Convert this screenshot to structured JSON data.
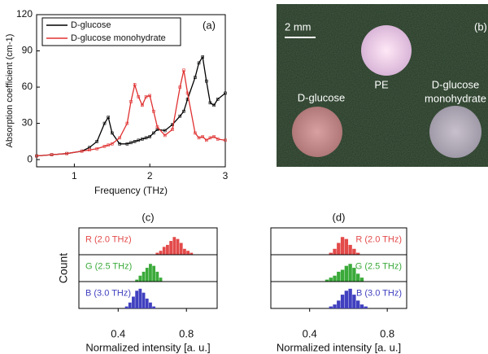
{
  "chart_data": [
    {
      "type": "line",
      "title": "(a)",
      "xlabel": "Frequency (THz)",
      "ylabel": "Absorption coefficient (cm-1)",
      "xlim": [
        0.5,
        3
      ],
      "xticks": [
        1,
        2,
        3
      ],
      "ylim": [
        -6,
        120
      ],
      "yticks": [
        0,
        30,
        60,
        90,
        120
      ],
      "x": [
        0.5,
        0.7,
        0.9,
        1.1,
        1.2,
        1.3,
        1.4,
        1.45,
        1.5,
        1.6,
        1.7,
        1.75,
        1.8,
        1.85,
        1.9,
        1.95,
        2.0,
        2.05,
        2.1,
        2.2,
        2.3,
        2.4,
        2.45,
        2.5,
        2.6,
        2.65,
        2.7,
        2.75,
        2.8,
        2.85,
        2.9,
        3.0
      ],
      "series": [
        {
          "name": "D-glucose",
          "color": "#000000",
          "values": [
            3,
            4,
            5,
            7,
            10,
            15,
            30,
            35,
            22,
            13,
            13,
            14,
            15,
            16,
            17,
            18,
            19,
            22,
            25,
            24,
            29,
            36,
            40,
            50,
            68,
            80,
            85,
            65,
            47,
            45,
            50,
            55
          ]
        },
        {
          "name": "D-glucose monohydrate",
          "color": "#e03030",
          "values": [
            3,
            4,
            5,
            7,
            8,
            9,
            11,
            12,
            13,
            18,
            30,
            48,
            62,
            52,
            45,
            52,
            53,
            40,
            27,
            20,
            25,
            60,
            74,
            55,
            22,
            18,
            19,
            16,
            18,
            19,
            17,
            16
          ]
        }
      ]
    },
    {
      "type": "histogram",
      "title": "(c)",
      "ylabel": "Count",
      "xlabel": "Normalized intensity [a. u.]",
      "xlim": [
        0.17,
        0.98
      ],
      "xticks": [
        0.4,
        0.8
      ],
      "ylim": [
        0,
        12
      ],
      "series": [
        {
          "name": "R (2.0 THz)",
          "color": "#e34a4a",
          "bins": [
            0.62,
            0.64,
            0.66,
            0.68,
            0.7,
            0.72,
            0.74,
            0.76,
            0.78,
            0.8,
            0.82,
            0.84
          ],
          "values": [
            1,
            2,
            4,
            5,
            7,
            9,
            8,
            6,
            3,
            2,
            1
          ]
        },
        {
          "name": "G (2.5 THz)",
          "color": "#3aaa3a",
          "bins": [
            0.5,
            0.52,
            0.54,
            0.56,
            0.58,
            0.6,
            0.62,
            0.64,
            0.66
          ],
          "values": [
            1,
            3,
            5,
            7,
            9,
            8,
            5,
            2
          ]
        },
        {
          "name": "B (3.0 THz)",
          "color": "#4040c0",
          "bins": [
            0.44,
            0.46,
            0.48,
            0.5,
            0.52,
            0.54,
            0.56,
            0.58,
            0.6,
            0.62
          ],
          "values": [
            1,
            3,
            6,
            9,
            10,
            8,
            5,
            3,
            1
          ]
        }
      ]
    },
    {
      "type": "histogram",
      "title": "(d)",
      "xlabel": "Normalized intensity [a. u.]",
      "xlim": [
        0.2,
        0.9
      ],
      "xticks": [
        0.4,
        0.8
      ],
      "ylim": [
        0,
        12
      ],
      "series": [
        {
          "name": "R (2.0 THz)",
          "color": "#e34a4a",
          "bins": [
            0.5,
            0.52,
            0.54,
            0.56,
            0.58,
            0.6,
            0.62,
            0.64,
            0.66
          ],
          "values": [
            1,
            3,
            6,
            9,
            8,
            5,
            3,
            1
          ]
        },
        {
          "name": "G (2.5 THz)",
          "color": "#3aaa3a",
          "bins": [
            0.48,
            0.5,
            0.52,
            0.54,
            0.56,
            0.58,
            0.6,
            0.62,
            0.64,
            0.66,
            0.68
          ],
          "values": [
            1,
            2,
            3,
            5,
            6,
            8,
            9,
            7,
            4,
            2
          ]
        },
        {
          "name": "B (3.0 THz)",
          "color": "#4040c0",
          "bins": [
            0.5,
            0.52,
            0.54,
            0.56,
            0.58,
            0.6,
            0.62,
            0.64,
            0.66,
            0.68,
            0.7
          ],
          "values": [
            1,
            2,
            4,
            7,
            9,
            10,
            7,
            4,
            2,
            1
          ]
        }
      ]
    }
  ],
  "image": {
    "scale": "2 mm",
    "panel": "(b)",
    "labels": [
      "PE",
      "D-glucose",
      "D-glucose",
      "monohydrate"
    ]
  }
}
